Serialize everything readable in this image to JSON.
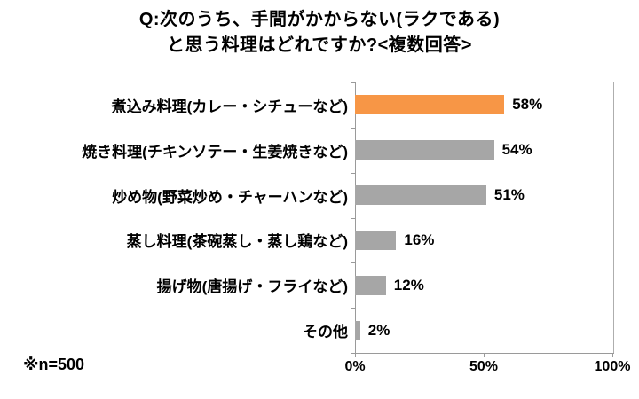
{
  "title": {
    "line1": "Q:次のうち、手間がかからない(ラクである)",
    "line2": "と思う料理はどれですか?<複数回答>"
  },
  "note": "※n=500",
  "colors": {
    "highlight_bar": "#F79646",
    "default_bar": "#A6A6A6",
    "axis": "#9A9A9A",
    "gridline": "#AEAEAE",
    "text": "#000000"
  },
  "chart_data": {
    "type": "bar",
    "orientation": "horizontal",
    "categories": [
      "煮込み料理(カレー・シチューなど)",
      "焼き料理(チキンソテー・生姜焼きなど)",
      "炒め物(野菜炒め・チャーハンなど)",
      "蒸し料理(茶碗蒸し・蒸し鶏など)",
      "揚げ物(唐揚げ・フライなど)",
      "その他"
    ],
    "values": [
      58,
      54,
      51,
      16,
      12,
      2
    ],
    "value_labels": [
      "58%",
      "54%",
      "51%",
      "16%",
      "12%",
      "2%"
    ],
    "highlighted_index": 0,
    "xlim": [
      0,
      100
    ],
    "x_ticks": [
      0,
      50,
      100
    ],
    "x_tick_labels": [
      "0%",
      "50%",
      "100%"
    ],
    "grid": "vertical",
    "legend": "none",
    "title": "Q:次のうち、手間がかからない(ラクである)と思う料理はどれですか?<複数回答>",
    "sample_note": "※n=500"
  }
}
